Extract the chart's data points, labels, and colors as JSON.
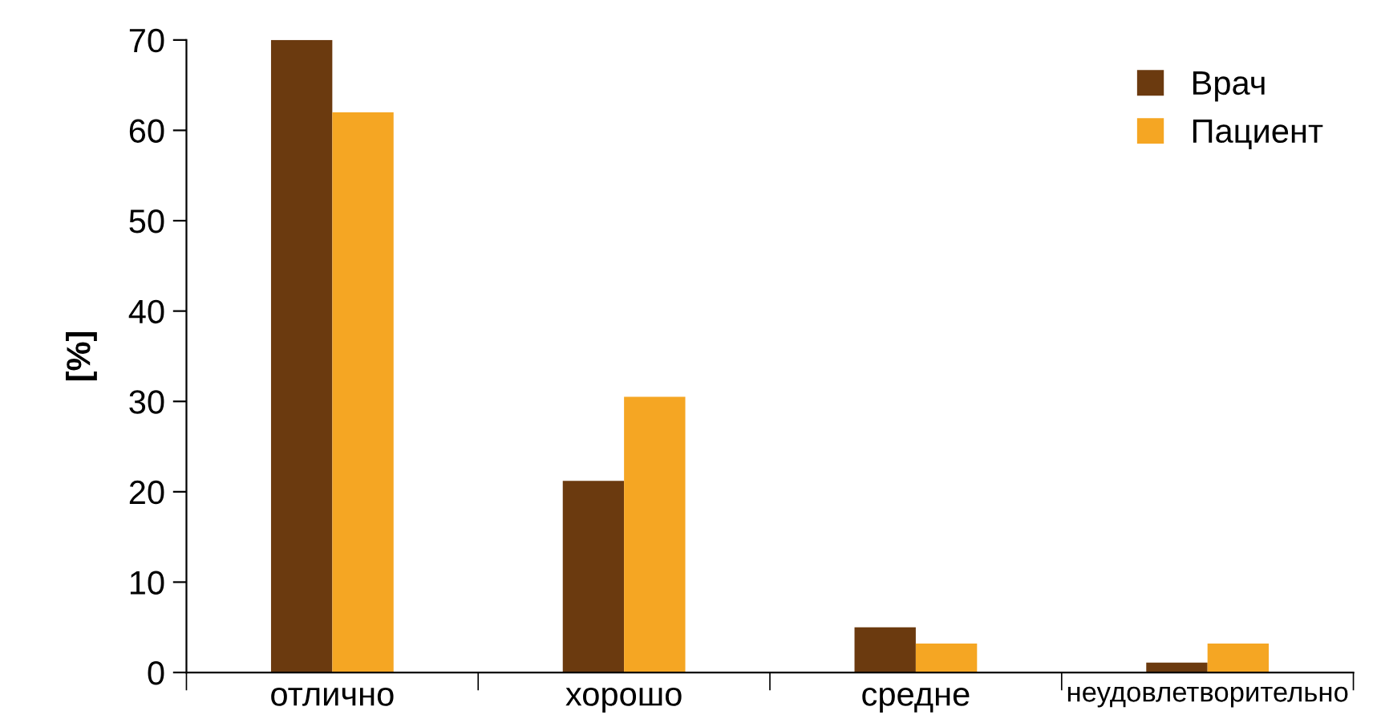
{
  "chart_data": {
    "type": "bar",
    "ylabel": "[%]",
    "categories": [
      "отлично",
      "хорошо",
      "средне",
      "неудовлетворительно"
    ],
    "series": [
      {
        "name": "Врач",
        "color": "#6b3a0f",
        "values": [
          70,
          21.2,
          5,
          1.1
        ]
      },
      {
        "name": "Пациент",
        "color": "#f5a623",
        "values": [
          62,
          30.5,
          3.2,
          3.2
        ]
      }
    ],
    "ylim": [
      0,
      70
    ],
    "yticks": [
      0,
      10,
      20,
      30,
      40,
      50,
      60,
      70
    ],
    "grid": false,
    "legend": "top right"
  }
}
